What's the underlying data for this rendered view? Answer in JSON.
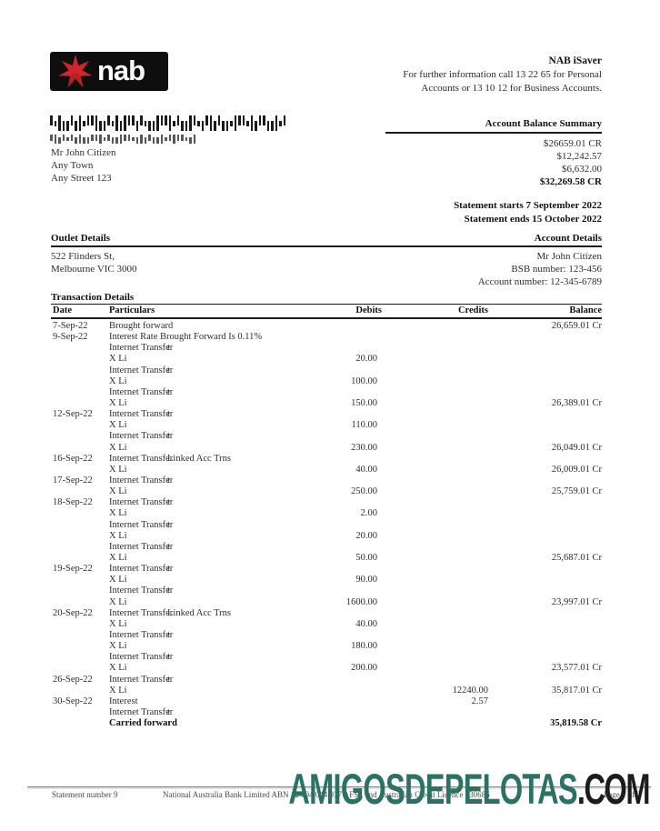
{
  "header": {
    "logo_text": "nab",
    "product": "NAB iSaver",
    "info_line1": "For further information call 13 22 65 for Personal",
    "info_line2": "Accounts or 13 10 12 for Business Accounts."
  },
  "customer": {
    "name": "Mr John Citizen",
    "line2": "Any Town",
    "line3": "Any Street 123"
  },
  "balance_summary": {
    "title": "Account Balance Summary",
    "rows": [
      "$26659.01 CR",
      "$12,242.57",
      "$6,632.00"
    ],
    "total": "$32,269.58 CR",
    "statement_starts": "Statement starts 7 September 2022",
    "statement_ends": "Statement ends 15 October 2022"
  },
  "outlet": {
    "title": "Outlet Details",
    "line1": "522 Flinders St,",
    "line2": "Melbourne VIC 3000"
  },
  "account": {
    "title": "Account Details",
    "name": "Mr John Citizen",
    "bsb": "BSB number: 123-456",
    "number": "Account number: 12-345-6789"
  },
  "transactions": {
    "title": "Transaction Details",
    "columns": {
      "date": "Date",
      "particulars": "Particulars",
      "debits": "Debits",
      "credits": "Credits",
      "balance": "Balance"
    },
    "rows": [
      {
        "date": "7-Sep-22",
        "part": "Brought forward",
        "balance": "26,659.01 Cr"
      },
      {
        "date": "9-Sep-22",
        "part": "Interest Rate Brought Forward Is 0.11%"
      },
      {
        "part": "Internet Transfer",
        "part2": "t"
      },
      {
        "part": "X Li",
        "debit": "20.00"
      },
      {
        "part": "Internet Transfer",
        "part2": "t"
      },
      {
        "part": "X Li",
        "debit": "100.00"
      },
      {
        "part": "Internet Transfer",
        "part2": "t"
      },
      {
        "part": "X Li",
        "debit": "150.00",
        "balance": "26,389.01 Cr"
      },
      {
        "date": "12-Sep-22",
        "part": "Internet Transfer",
        "part2": "t"
      },
      {
        "part": "X Li",
        "debit": "110.00"
      },
      {
        "part": "Internet Transfer",
        "part2": "t"
      },
      {
        "part": "X Li",
        "debit": "230.00",
        "balance": "26,049.01 Cr"
      },
      {
        "date": "16-Sep-22",
        "part": "Internet Transfer",
        "part2": "Linked Acc Trns"
      },
      {
        "part": "X Li",
        "debit": "40.00",
        "balance": "26,009.01 Cr"
      },
      {
        "date": "17-Sep-22",
        "part": "Internet Transfer",
        "part2": "t"
      },
      {
        "part": "X Li",
        "debit": "250.00",
        "balance": "25,759.01 Cr"
      },
      {
        "date": "18-Sep-22",
        "part": "Internet Transfer",
        "part2": "t"
      },
      {
        "part": "X Li",
        "debit": "2.00"
      },
      {
        "part": "Internet Transfer",
        "part2": "t"
      },
      {
        "part": "X Li",
        "debit": "20.00"
      },
      {
        "part": "Internet Transfer",
        "part2": "t"
      },
      {
        "part": "X Li",
        "debit": "50.00",
        "balance": "25,687.01 Cr"
      },
      {
        "date": "19-Sep-22",
        "part": "Internet Transfer",
        "part2": "t"
      },
      {
        "part": "X Li",
        "debit": "90.00"
      },
      {
        "part": "Internet Transfer",
        "part2": "t"
      },
      {
        "part": "X Li",
        "debit": "1600.00",
        "balance": "23,997.01 Cr"
      },
      {
        "date": "20-Sep-22",
        "part": "Internet Transfer",
        "part2": "Linked Acc Trns"
      },
      {
        "part": "X Li",
        "debit": "40.00"
      },
      {
        "part": "Internet Transfer",
        "part2": "t"
      },
      {
        "part": "X Li",
        "debit": "180.00"
      },
      {
        "part": "Internet Transfer",
        "part2": "t"
      },
      {
        "part": "X Li",
        "debit": "200.00",
        "balance": "23,577.01 Cr"
      },
      {
        "date": "26-Sep-22",
        "part": "Internet Transfer",
        "part2": "t"
      },
      {
        "part": "X Li",
        "credit": "12240.00",
        "balance": "35,817.01 Cr"
      },
      {
        "date": "30-Sep-22",
        "part": "Interest",
        "credit": "2.57"
      },
      {
        "part": "Internet Transfer",
        "part2": "t"
      },
      {
        "part": "Carried forward",
        "balance": "35,819.58 Cr",
        "bold": true
      }
    ]
  },
  "footer": {
    "statement_number": "Statement number 9",
    "legal": "National Australia Bank Limited ABN 12 004 044 937 AFSL and Australian Credit Licence 230686",
    "page": "Page 1 of 2"
  },
  "watermark": {
    "main": "AMIGOSDEPELOTAS",
    "tld": ".COM",
    "main_color": "#2b7264",
    "tld_color": "#1c1c1c"
  },
  "colors": {
    "logo_bg": "#0e0e0e",
    "logo_star": "#d0252c",
    "rule": "#1a1a1a"
  }
}
